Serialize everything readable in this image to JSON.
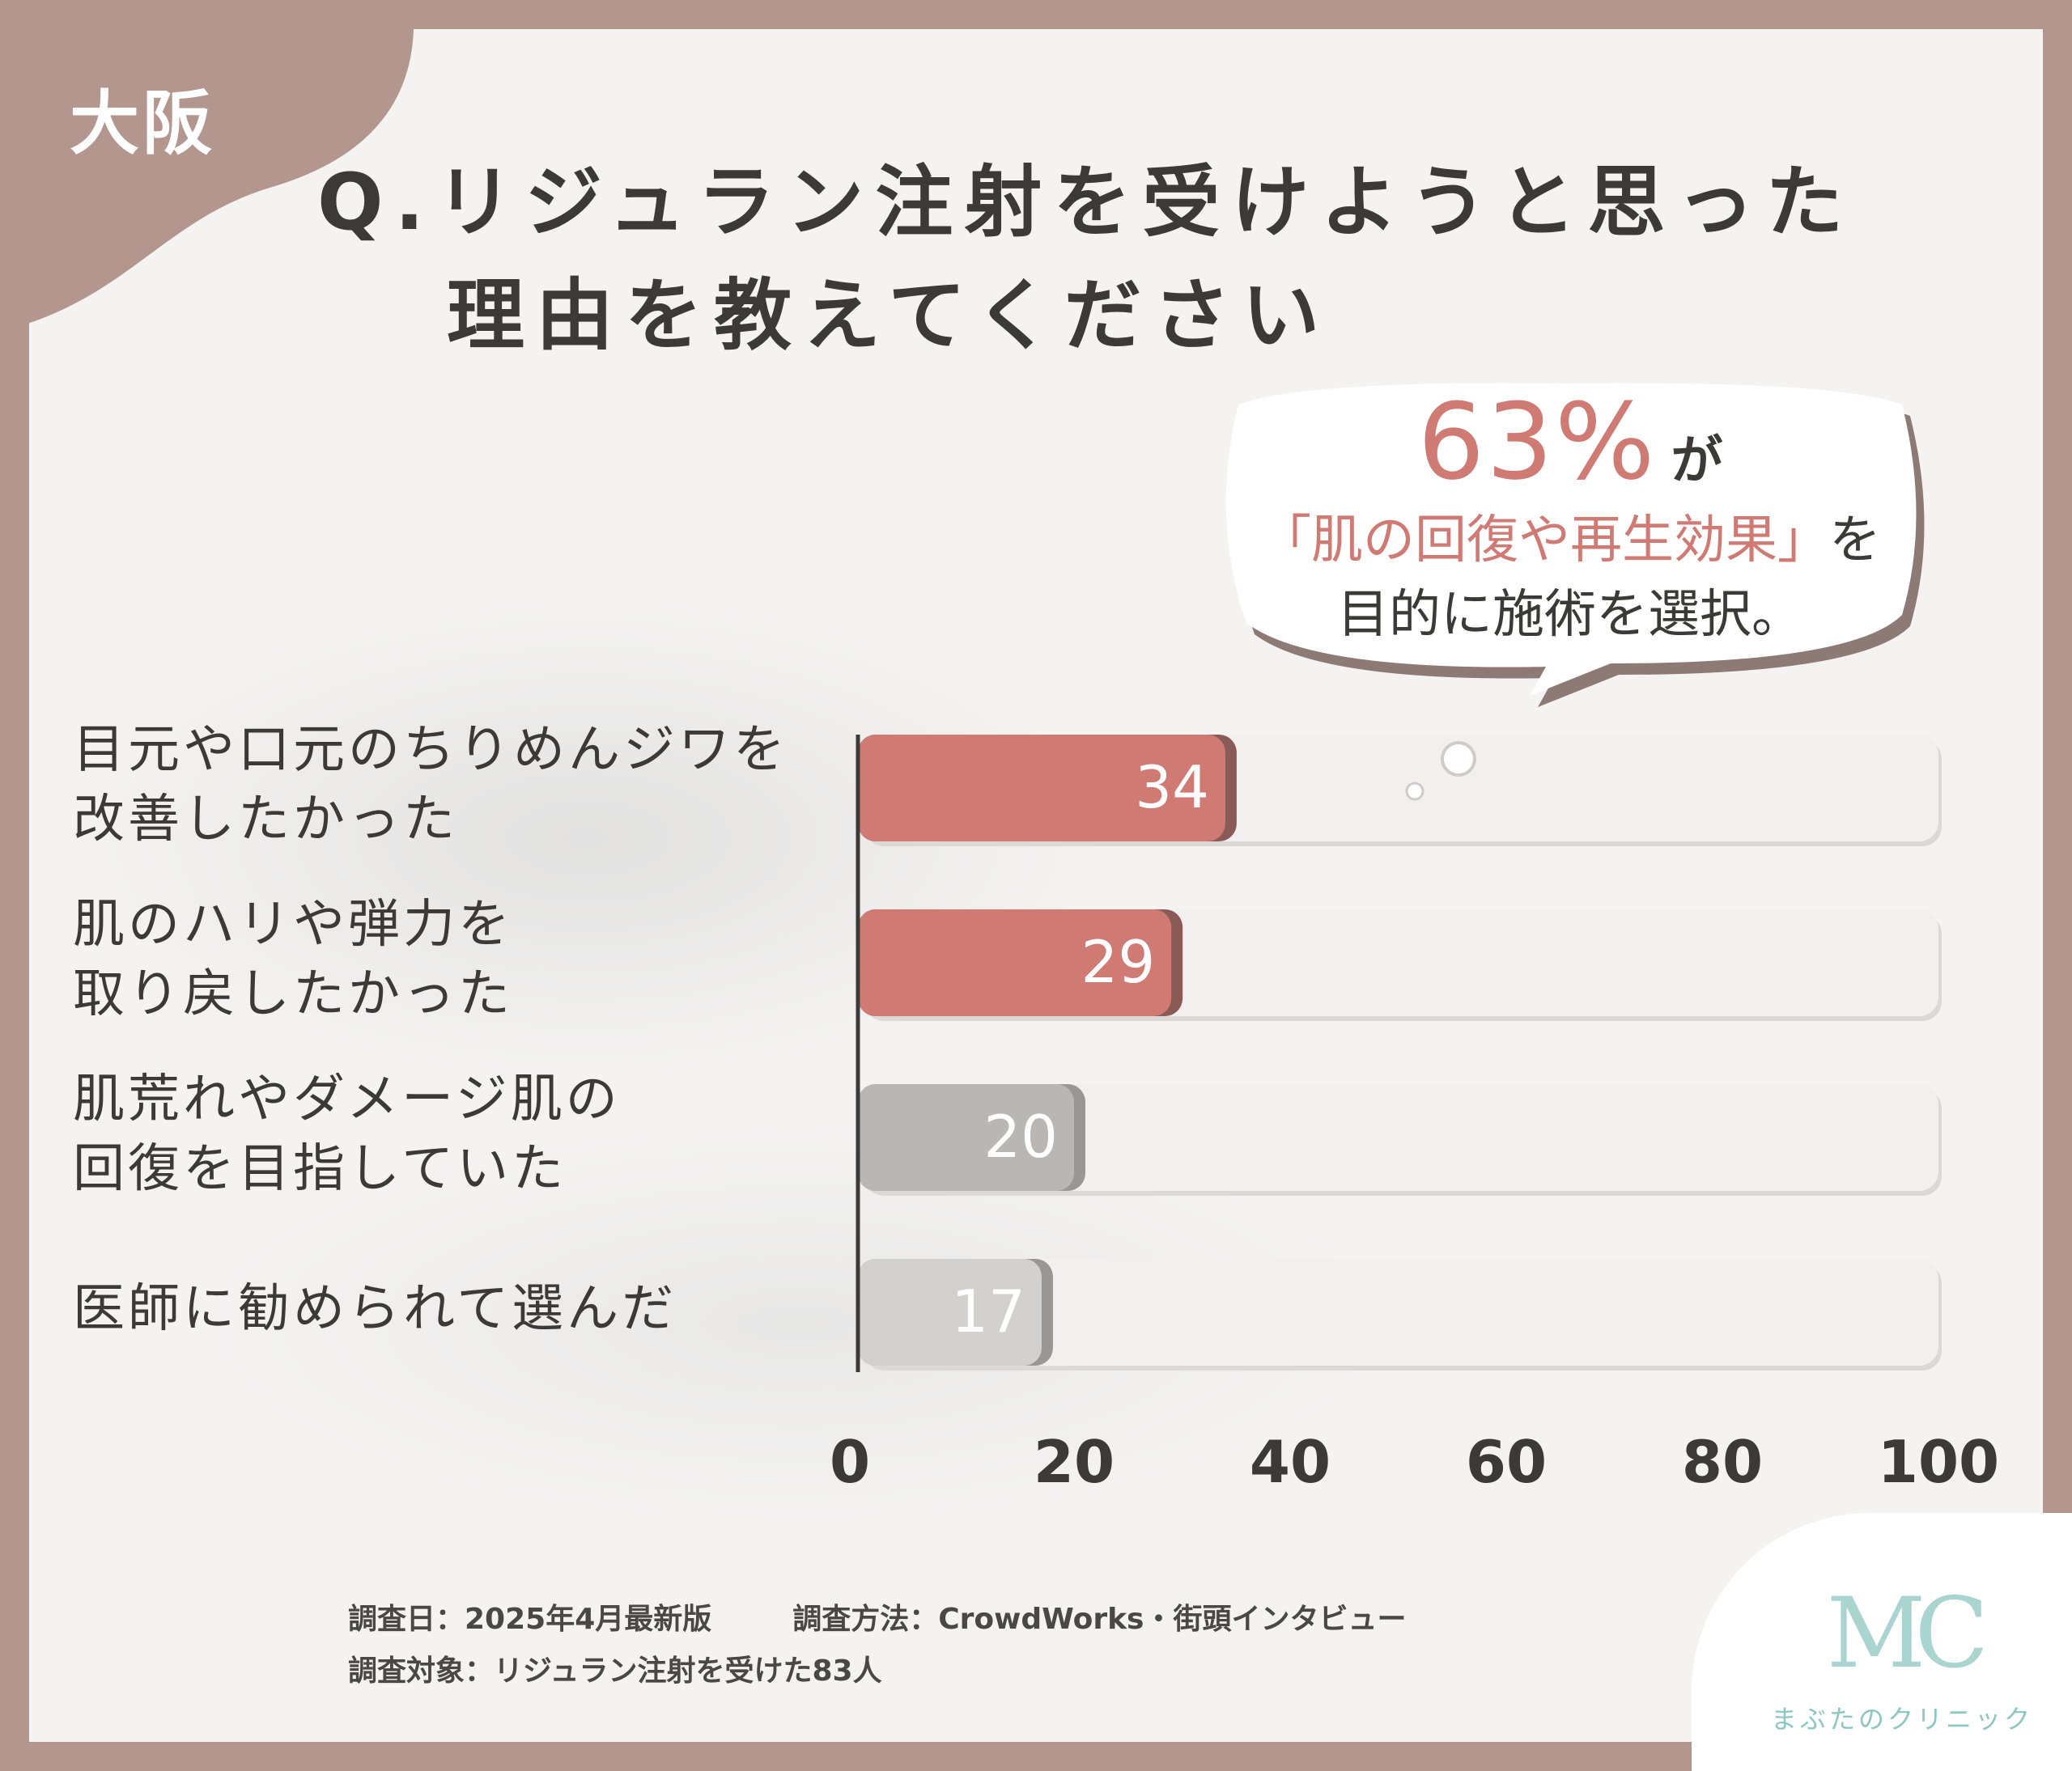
{
  "region": "大阪",
  "title": {
    "line1": "Q.リジュラン注射を受けようと思った",
    "line2": "理由を教えてください"
  },
  "callout": {
    "percent": "63%",
    "suffix": "が",
    "line2_highlight": "「肌の回復や再生効果」",
    "line2_tail": "を",
    "line3": "目的に施術を選択。"
  },
  "chart_data": {
    "type": "bar",
    "orientation": "horizontal",
    "categories": [
      [
        "目元や口元のちりめんジワを",
        "改善したかった"
      ],
      [
        "肌のハリや弾力を",
        "取り戻したかった"
      ],
      [
        "肌荒れやダメージ肌の",
        "回復を目指していた"
      ],
      [
        "医師に勧められて選んだ"
      ]
    ],
    "values": [
      34,
      29,
      20,
      17
    ],
    "value_labels": [
      "34",
      "29",
      "20",
      "17"
    ],
    "xlim": [
      0,
      100
    ],
    "x_ticks": [
      "0",
      "20",
      "40",
      "60",
      "80",
      "100"
    ],
    "bar_colors": [
      "#d07a74",
      "#d07a74",
      "#b9b6b4",
      "#d3d1cf"
    ],
    "track_color": "#f2efee",
    "grid": false
  },
  "footer": {
    "date": "調査日：2025年4月最新版",
    "method": "調査方法：CrowdWorks・街頭インタビュー",
    "target": "調査対象：リジュラン注射を受けた83人"
  },
  "logo": {
    "mark": "MC",
    "name": "まぶたのクリニック",
    "color": "#a9d4cf"
  },
  "colors": {
    "frame": "#b3968e",
    "accent": "#d07a74",
    "text": "#3c3a39"
  }
}
